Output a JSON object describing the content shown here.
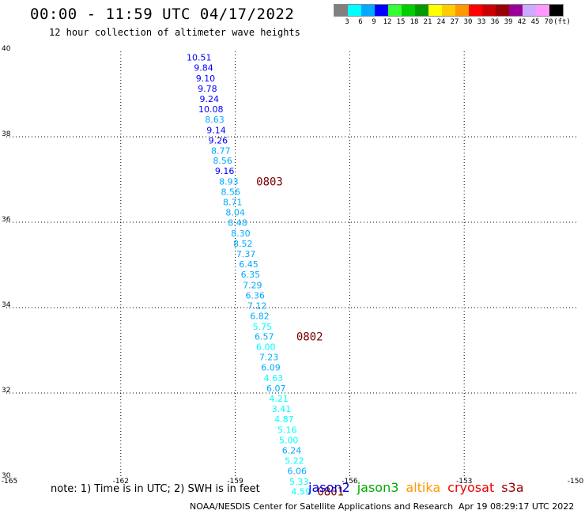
{
  "header": {
    "title": "00:00 - 11:59 UTC 04/17/2022",
    "subtitle": "12 hour collection of altimeter wave heights"
  },
  "legend": {
    "colors": [
      "#808080",
      "#00ffff",
      "#00aaff",
      "#0000ff",
      "#33ff33",
      "#00cc00",
      "#009900",
      "#ffff00",
      "#ffcc00",
      "#ff9900",
      "#ff0000",
      "#cc0000",
      "#990000",
      "#990099",
      "#ccaaff",
      "#ff99ff",
      "#000000"
    ],
    "labels": [
      "3",
      "6",
      "9",
      "12",
      "15",
      "18",
      "21",
      "24",
      "27",
      "30",
      "33",
      "36",
      "39",
      "42",
      "45",
      "70",
      "(ft)"
    ]
  },
  "axes": {
    "lon_ticks": [
      "-165",
      "-162",
      "-159",
      "-156",
      "-153",
      "-150"
    ],
    "lat_ticks": [
      "40",
      "38",
      "36",
      "34",
      "32",
      "30"
    ]
  },
  "chart_data": {
    "type": "scatter",
    "xlim": [
      -165,
      -150
    ],
    "ylim": [
      30,
      40
    ],
    "grid": true,
    "points": [
      {
        "lon": -159.95,
        "lat": 39.86,
        "v": "10.51",
        "c": "#0000ff"
      },
      {
        "lon": -159.83,
        "lat": 39.62,
        "v": "9.84",
        "c": "#0000ff"
      },
      {
        "lon": -159.78,
        "lat": 39.37,
        "v": "9.10",
        "c": "#0000ff"
      },
      {
        "lon": -159.73,
        "lat": 39.13,
        "v": "9.78",
        "c": "#0000ff"
      },
      {
        "lon": -159.68,
        "lat": 38.89,
        "v": "9.24",
        "c": "#0000ff"
      },
      {
        "lon": -159.64,
        "lat": 38.65,
        "v": "10.08",
        "c": "#0000ff"
      },
      {
        "lon": -159.54,
        "lat": 38.41,
        "v": "8.63",
        "c": "#00aaff"
      },
      {
        "lon": -159.5,
        "lat": 38.16,
        "v": "9.14",
        "c": "#0000ff"
      },
      {
        "lon": -159.45,
        "lat": 37.92,
        "v": "9.26",
        "c": "#0000ff"
      },
      {
        "lon": -159.38,
        "lat": 37.68,
        "v": "8.77",
        "c": "#00aaff"
      },
      {
        "lon": -159.33,
        "lat": 37.44,
        "v": "8.56",
        "c": "#00aaff"
      },
      {
        "lon": -159.28,
        "lat": 37.2,
        "v": "9.16",
        "c": "#0000ff"
      },
      {
        "lon": -159.17,
        "lat": 36.95,
        "v": "8.93",
        "c": "#00aaff"
      },
      {
        "lon": -159.12,
        "lat": 36.71,
        "v": "8.56",
        "c": "#00aaff"
      },
      {
        "lon": -159.07,
        "lat": 36.47,
        "v": "8.71",
        "c": "#00aaff"
      },
      {
        "lon": -159.0,
        "lat": 36.23,
        "v": "8.04",
        "c": "#00aaff"
      },
      {
        "lon": -158.94,
        "lat": 35.99,
        "v": "8.48",
        "c": "#00aaff"
      },
      {
        "lon": -158.86,
        "lat": 35.74,
        "v": "8.30",
        "c": "#00aaff"
      },
      {
        "lon": -158.8,
        "lat": 35.5,
        "v": "8.52",
        "c": "#00aaff"
      },
      {
        "lon": -158.72,
        "lat": 35.26,
        "v": "7.37",
        "c": "#00aaff"
      },
      {
        "lon": -158.65,
        "lat": 35.02,
        "v": "6.45",
        "c": "#00aaff"
      },
      {
        "lon": -158.6,
        "lat": 34.78,
        "v": "6.35",
        "c": "#00aaff"
      },
      {
        "lon": -158.55,
        "lat": 34.53,
        "v": "7.29",
        "c": "#00aaff"
      },
      {
        "lon": -158.48,
        "lat": 34.29,
        "v": "6.36",
        "c": "#00aaff"
      },
      {
        "lon": -158.43,
        "lat": 34.05,
        "v": "7.12",
        "c": "#00aaff"
      },
      {
        "lon": -158.36,
        "lat": 33.81,
        "v": "6.82",
        "c": "#00aaff"
      },
      {
        "lon": -158.29,
        "lat": 33.56,
        "v": "5.75",
        "c": "#00ffff"
      },
      {
        "lon": -158.24,
        "lat": 33.32,
        "v": "6.57",
        "c": "#00aaff"
      },
      {
        "lon": -158.2,
        "lat": 33.08,
        "v": "6.00",
        "c": "#00ffff"
      },
      {
        "lon": -158.12,
        "lat": 32.84,
        "v": "7.23",
        "c": "#00aaff"
      },
      {
        "lon": -158.07,
        "lat": 32.6,
        "v": "6.09",
        "c": "#00aaff"
      },
      {
        "lon": -158.0,
        "lat": 32.35,
        "v": "4.63",
        "c": "#00ffff"
      },
      {
        "lon": -157.93,
        "lat": 32.11,
        "v": "6.07",
        "c": "#00aaff"
      },
      {
        "lon": -157.86,
        "lat": 31.87,
        "v": "4.21",
        "c": "#00ffff"
      },
      {
        "lon": -157.79,
        "lat": 31.63,
        "v": "3.41",
        "c": "#00ffff"
      },
      {
        "lon": -157.72,
        "lat": 31.39,
        "v": "4.87",
        "c": "#00ffff"
      },
      {
        "lon": -157.64,
        "lat": 31.14,
        "v": "5.16",
        "c": "#00ffff"
      },
      {
        "lon": -157.6,
        "lat": 30.9,
        "v": "5.00",
        "c": "#00ffff"
      },
      {
        "lon": -157.52,
        "lat": 30.66,
        "v": "6.24",
        "c": "#00aaff"
      },
      {
        "lon": -157.45,
        "lat": 30.42,
        "v": "5.22",
        "c": "#00ffff"
      },
      {
        "lon": -157.38,
        "lat": 30.18,
        "v": "6.06",
        "c": "#00aaff"
      },
      {
        "lon": -157.33,
        "lat": 29.93,
        "v": "5.33",
        "c": "#00ffff"
      },
      {
        "lon": -157.28,
        "lat": 29.69,
        "v": "4.59",
        "c": "#00ffff"
      }
    ],
    "pass_labels": [
      {
        "lon": -158.45,
        "lat": 36.95,
        "t": "0803"
      },
      {
        "lon": -157.4,
        "lat": 33.32,
        "t": "0802"
      },
      {
        "lon": -156.85,
        "lat": 29.69,
        "t": "0801"
      }
    ]
  },
  "note": "note: 1) Time is in UTC; 2) SWH is in feet",
  "satellites": [
    {
      "name": "jason2",
      "color": "#0000dd"
    },
    {
      "name": "jason3",
      "color": "#00aa00"
    },
    {
      "name": "altika",
      "color": "#ff9900"
    },
    {
      "name": "cryosat",
      "color": "#ee0000"
    },
    {
      "name": "s3a",
      "color": "#990000"
    }
  ],
  "footer": {
    "credit": "NOAA/NESDIS Center for Satellite Applications and Research",
    "timestamp": "Apr 19 08:29:17 UTC 2022"
  }
}
